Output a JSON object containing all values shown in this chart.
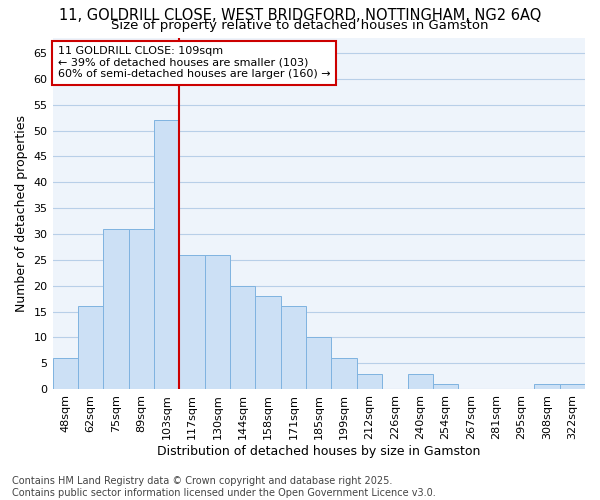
{
  "title_line1": "11, GOLDRILL CLOSE, WEST BRIDGFORD, NOTTINGHAM, NG2 6AQ",
  "title_line2": "Size of property relative to detached houses in Gamston",
  "xlabel": "Distribution of detached houses by size in Gamston",
  "ylabel": "Number of detached properties",
  "categories": [
    "48sqm",
    "62sqm",
    "75sqm",
    "89sqm",
    "103sqm",
    "117sqm",
    "130sqm",
    "144sqm",
    "158sqm",
    "171sqm",
    "185sqm",
    "199sqm",
    "212sqm",
    "226sqm",
    "240sqm",
    "254sqm",
    "267sqm",
    "281sqm",
    "295sqm",
    "308sqm",
    "322sqm"
  ],
  "values": [
    6,
    16,
    31,
    31,
    52,
    26,
    26,
    20,
    18,
    16,
    10,
    6,
    3,
    0,
    3,
    1,
    0,
    0,
    0,
    1,
    1
  ],
  "bar_color": "#cce0f5",
  "bar_edgecolor": "#7fb3e0",
  "redline_index": 4,
  "redline_color": "#cc0000",
  "annotation_text": "11 GOLDRILL CLOSE: 109sqm\n← 39% of detached houses are smaller (103)\n60% of semi-detached houses are larger (160) →",
  "annotation_box_facecolor": "#ffffff",
  "annotation_box_edgecolor": "#cc0000",
  "ylim": [
    0,
    68
  ],
  "yticks": [
    0,
    5,
    10,
    15,
    20,
    25,
    30,
    35,
    40,
    45,
    50,
    55,
    60,
    65
  ],
  "plot_bg_color": "#eef4fb",
  "fig_bg_color": "#ffffff",
  "grid_color": "#b8cfe8",
  "footer_line1": "Contains HM Land Registry data © Crown copyright and database right 2025.",
  "footer_line2": "Contains public sector information licensed under the Open Government Licence v3.0.",
  "title_fontsize": 10.5,
  "subtitle_fontsize": 9.5,
  "axis_label_fontsize": 9,
  "tick_fontsize": 8,
  "annotation_fontsize": 8,
  "footer_fontsize": 7,
  "bar_width": 1.0
}
